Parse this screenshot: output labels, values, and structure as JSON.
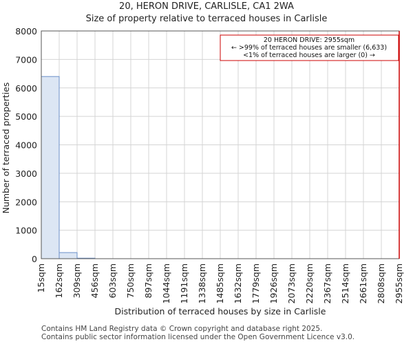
{
  "chart_data": {
    "type": "bar",
    "title": "20, HERON DRIVE, CARLISLE, CA1 2WA",
    "subtitle": "Size of property relative to terraced houses in Carlisle",
    "xlabel": "Distribution of terraced houses by size in Carlisle",
    "ylabel": "Number of terraced properties",
    "ylim": [
      0,
      8000
    ],
    "yticks": [
      0,
      1000,
      2000,
      3000,
      4000,
      5000,
      6000,
      7000,
      8000
    ],
    "bin_edges": [
      "15sqm",
      "162sqm",
      "309sqm",
      "456sqm",
      "603sqm",
      "750sqm",
      "897sqm",
      "1044sqm",
      "1191sqm",
      "1338sqm",
      "1485sqm",
      "1632sqm",
      "1779sqm",
      "1926sqm",
      "2073sqm",
      "2220sqm",
      "2367sqm",
      "2514sqm",
      "2661sqm",
      "2808sqm",
      "2955sqm"
    ],
    "values": [
      6400,
      215,
      18,
      0,
      0,
      0,
      0,
      0,
      0,
      0,
      0,
      0,
      0,
      0,
      0,
      0,
      0,
      0,
      0,
      0
    ],
    "marker_bin_index": 20,
    "annotation": {
      "line1": "20 HERON DRIVE: 2955sqm",
      "line2": "← >99% of terraced houses are smaller (6,633)",
      "line3": "<1% of terraced houses are larger (0) →"
    },
    "colors": {
      "bar_fill": "#dce6f4",
      "bar_stroke": "#6a8fc8",
      "marker": "#cc0000",
      "grid": "#d4d4d4"
    }
  },
  "footer": {
    "line1": "Contains HM Land Registry data © Crown copyright and database right 2025.",
    "line2": "Contains public sector information licensed under the Open Government Licence v3.0."
  }
}
